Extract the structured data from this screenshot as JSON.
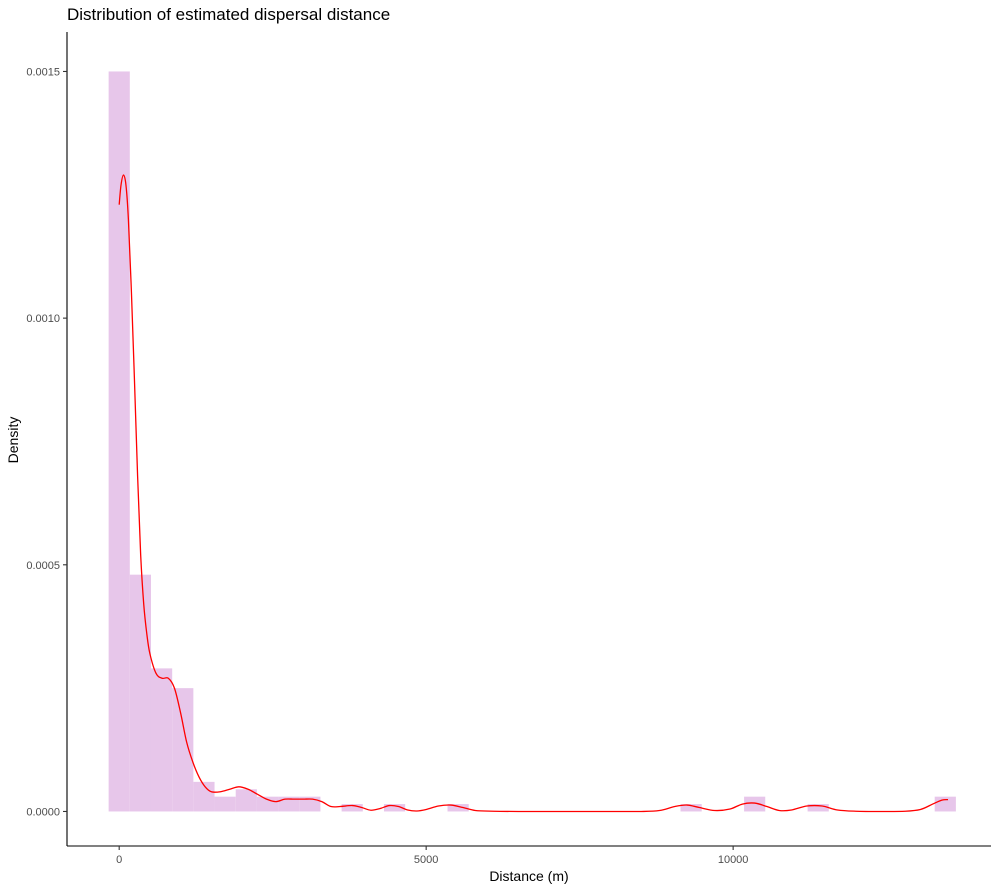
{
  "chart_data": {
    "type": "bar",
    "title": "Distribution of estimated dispersal distance",
    "xlabel": "Distance (m)",
    "ylabel": "Density",
    "xlim": [
      -850,
      14200
    ],
    "ylim": [
      -7e-05,
      0.00158
    ],
    "x_ticks": [
      {
        "value": 0,
        "label": "0"
      },
      {
        "value": 5000,
        "label": "5000"
      },
      {
        "value": 10000,
        "label": "10000"
      }
    ],
    "y_ticks": [
      {
        "value": 0,
        "label": "0.0000"
      },
      {
        "value": 0.0005,
        "label": "0.0005"
      },
      {
        "value": 0.001,
        "label": "0.0010"
      },
      {
        "value": 0.0015,
        "label": "0.0015"
      }
    ],
    "bin_width": 345,
    "bins": [
      {
        "x0": -172,
        "density": 0.0015
      },
      {
        "x0": 173,
        "density": 0.00048
      },
      {
        "x0": 518,
        "density": 0.00029
      },
      {
        "x0": 863,
        "density": 0.00025
      },
      {
        "x0": 1208,
        "density": 6e-05
      },
      {
        "x0": 1553,
        "density": 3e-05
      },
      {
        "x0": 1898,
        "density": 4.5e-05
      },
      {
        "x0": 2243,
        "density": 3e-05
      },
      {
        "x0": 2588,
        "density": 3e-05
      },
      {
        "x0": 2933,
        "density": 3e-05
      },
      {
        "x0": 3623,
        "density": 1.5e-05
      },
      {
        "x0": 4313,
        "density": 1.5e-05
      },
      {
        "x0": 5348,
        "density": 1.5e-05
      },
      {
        "x0": 9143,
        "density": 1.5e-05
      },
      {
        "x0": 10178,
        "density": 3e-05
      },
      {
        "x0": 11213,
        "density": 1.5e-05
      },
      {
        "x0": 13283,
        "density": 3e-05
      }
    ],
    "fill_color": "#e6c3e9",
    "density_curve": {
      "color": "#ff0000",
      "points": [
        [
          0,
          0.00123
        ],
        [
          30,
          0.00127
        ],
        [
          70,
          0.00129
        ],
        [
          110,
          0.00127
        ],
        [
          150,
          0.0012
        ],
        [
          200,
          0.00105
        ],
        [
          250,
          0.00087
        ],
        [
          300,
          0.00068
        ],
        [
          350,
          0.00052
        ],
        [
          400,
          0.00042
        ],
        [
          450,
          0.00036
        ],
        [
          500,
          0.00032
        ],
        [
          600,
          0.00028
        ],
        [
          700,
          0.00027
        ],
        [
          800,
          0.00027
        ],
        [
          900,
          0.00025
        ],
        [
          1000,
          0.0002
        ],
        [
          1100,
          0.00014
        ],
        [
          1200,
          0.0001
        ],
        [
          1300,
          7e-05
        ],
        [
          1400,
          5e-05
        ],
        [
          1500,
          4e-05
        ],
        [
          1650,
          4e-05
        ],
        [
          1800,
          4.5e-05
        ],
        [
          1950,
          5e-05
        ],
        [
          2100,
          4.5e-05
        ],
        [
          2250,
          3.5e-05
        ],
        [
          2400,
          2.5e-05
        ],
        [
          2550,
          2e-05
        ],
        [
          2700,
          2.5e-05
        ],
        [
          2850,
          2.5e-05
        ],
        [
          3000,
          2.5e-05
        ],
        [
          3150,
          2.5e-05
        ],
        [
          3300,
          2e-05
        ],
        [
          3450,
          1e-05
        ],
        [
          3600,
          1e-05
        ],
        [
          3800,
          1.2e-05
        ],
        [
          3950,
          8e-06
        ],
        [
          4100,
          2.5e-06
        ],
        [
          4250,
          6e-06
        ],
        [
          4400,
          1.2e-05
        ],
        [
          4550,
          1e-05
        ],
        [
          4700,
          3e-06
        ],
        [
          4850,
          1e-06
        ],
        [
          5000,
          4e-06
        ],
        [
          5200,
          1.1e-05
        ],
        [
          5400,
          1.3e-05
        ],
        [
          5600,
          8e-06
        ],
        [
          5800,
          2e-06
        ],
        [
          6100,
          5e-07
        ],
        [
          6500,
          0.0
        ],
        [
          7000,
          0.0
        ],
        [
          7500,
          0.0
        ],
        [
          8000,
          0.0
        ],
        [
          8500,
          0.0
        ],
        [
          8800,
          2e-06
        ],
        [
          9050,
          1e-05
        ],
        [
          9250,
          1.3e-05
        ],
        [
          9450,
          8e-06
        ],
        [
          9700,
          2e-06
        ],
        [
          9950,
          5e-06
        ],
        [
          10150,
          1.5e-05
        ],
        [
          10350,
          1.7e-05
        ],
        [
          10550,
          1e-05
        ],
        [
          10750,
          2e-06
        ],
        [
          10950,
          3e-06
        ],
        [
          11200,
          1.1e-05
        ],
        [
          11450,
          1.1e-05
        ],
        [
          11700,
          3e-06
        ],
        [
          12000,
          5e-07
        ],
        [
          12400,
          0.0
        ],
        [
          12800,
          5e-07
        ],
        [
          13050,
          4e-06
        ],
        [
          13250,
          1.5e-05
        ],
        [
          13400,
          2.3e-05
        ],
        [
          13500,
          2.4e-05
        ]
      ]
    }
  }
}
